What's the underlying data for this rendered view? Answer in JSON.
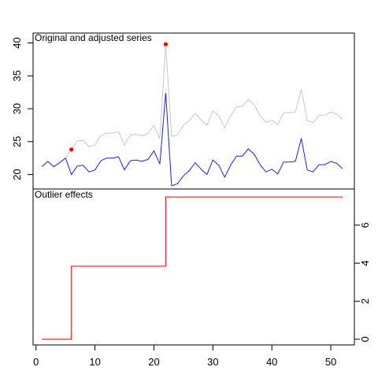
{
  "chart_data": [
    {
      "type": "line",
      "title": "Original and adjusted series",
      "xlabel": "",
      "ylabel": "",
      "xlim": [
        -0.5,
        54
      ],
      "ylim": [
        17.8,
        41.5
      ],
      "y_ticks": [
        20,
        25,
        30,
        35,
        40
      ],
      "y_axis_side": "left",
      "grid": false,
      "series": [
        {
          "name": "original",
          "color": "#c8c8c8",
          "x": [
            1,
            2,
            3,
            4,
            5,
            6,
            7,
            8,
            9,
            10,
            11,
            12,
            13,
            14,
            15,
            16,
            17,
            18,
            19,
            20,
            21,
            22,
            23,
            24,
            25,
            26,
            27,
            28,
            29,
            30,
            31,
            32,
            33,
            34,
            35,
            36,
            37,
            38,
            39,
            40,
            41,
            42,
            43,
            44,
            45,
            46,
            47,
            48,
            49,
            50,
            51,
            52
          ],
          "values": [
            21.2,
            22.0,
            21.2,
            21.8,
            22.5,
            23.8,
            25.1,
            25.2,
            24.2,
            24.5,
            25.9,
            26.3,
            26.3,
            26.5,
            24.5,
            26.0,
            26.1,
            25.9,
            26.2,
            27.5,
            25.5,
            39.8,
            25.8,
            26.0,
            27.5,
            28.2,
            29.3,
            28.3,
            27.5,
            29.7,
            28.9,
            27.1,
            28.9,
            30.3,
            30.3,
            31.4,
            30.6,
            29.0,
            27.9,
            28.3,
            27.6,
            29.4,
            29.4,
            29.5,
            33.0,
            28.2,
            27.9,
            29.0,
            29.0,
            29.5,
            29.2,
            28.4
          ]
        },
        {
          "name": "adjusted",
          "color": "#1c1cff",
          "x": [
            1,
            2,
            3,
            4,
            5,
            6,
            7,
            8,
            9,
            10,
            11,
            12,
            13,
            14,
            15,
            16,
            17,
            18,
            19,
            20,
            21,
            22,
            23,
            24,
            25,
            26,
            27,
            28,
            29,
            30,
            31,
            32,
            33,
            34,
            35,
            36,
            37,
            38,
            39,
            40,
            41,
            42,
            43,
            44,
            45,
            46,
            47,
            48,
            49,
            50,
            51,
            52
          ],
          "values": [
            21.2,
            22.0,
            21.2,
            21.8,
            22.5,
            20.0,
            21.3,
            21.4,
            20.4,
            20.7,
            22.1,
            22.5,
            22.5,
            22.7,
            20.7,
            22.1,
            22.2,
            22.0,
            22.3,
            23.6,
            21.6,
            32.4,
            18.3,
            18.6,
            19.8,
            20.6,
            21.8,
            20.8,
            20.0,
            22.2,
            21.4,
            19.6,
            21.4,
            22.8,
            22.8,
            23.9,
            23.1,
            21.5,
            20.4,
            20.8,
            20.1,
            21.9,
            21.9,
            22.0,
            25.5,
            20.7,
            20.4,
            21.5,
            21.5,
            22.0,
            21.7,
            20.9
          ]
        }
      ],
      "outlier_points": {
        "color": "#ff0000",
        "x": [
          6,
          22
        ],
        "values": [
          23.8,
          39.8
        ]
      }
    },
    {
      "type": "line",
      "title": "Outlier effects",
      "xlabel": "",
      "ylabel": "",
      "xlim": [
        -0.5,
        54
      ],
      "ylim": [
        -0.3,
        7.9
      ],
      "x_ticks": [
        0,
        10,
        20,
        30,
        40,
        50
      ],
      "y_ticks": [
        0,
        2,
        4,
        6
      ],
      "y_axis_side": "right",
      "grid": false,
      "series": [
        {
          "name": "outlier effects",
          "color": "#ff0000",
          "step": true,
          "x": [
            1,
            5,
            6,
            21,
            22,
            52
          ],
          "values": [
            0,
            0,
            3.84,
            3.84,
            7.48,
            7.48
          ]
        }
      ]
    }
  ]
}
